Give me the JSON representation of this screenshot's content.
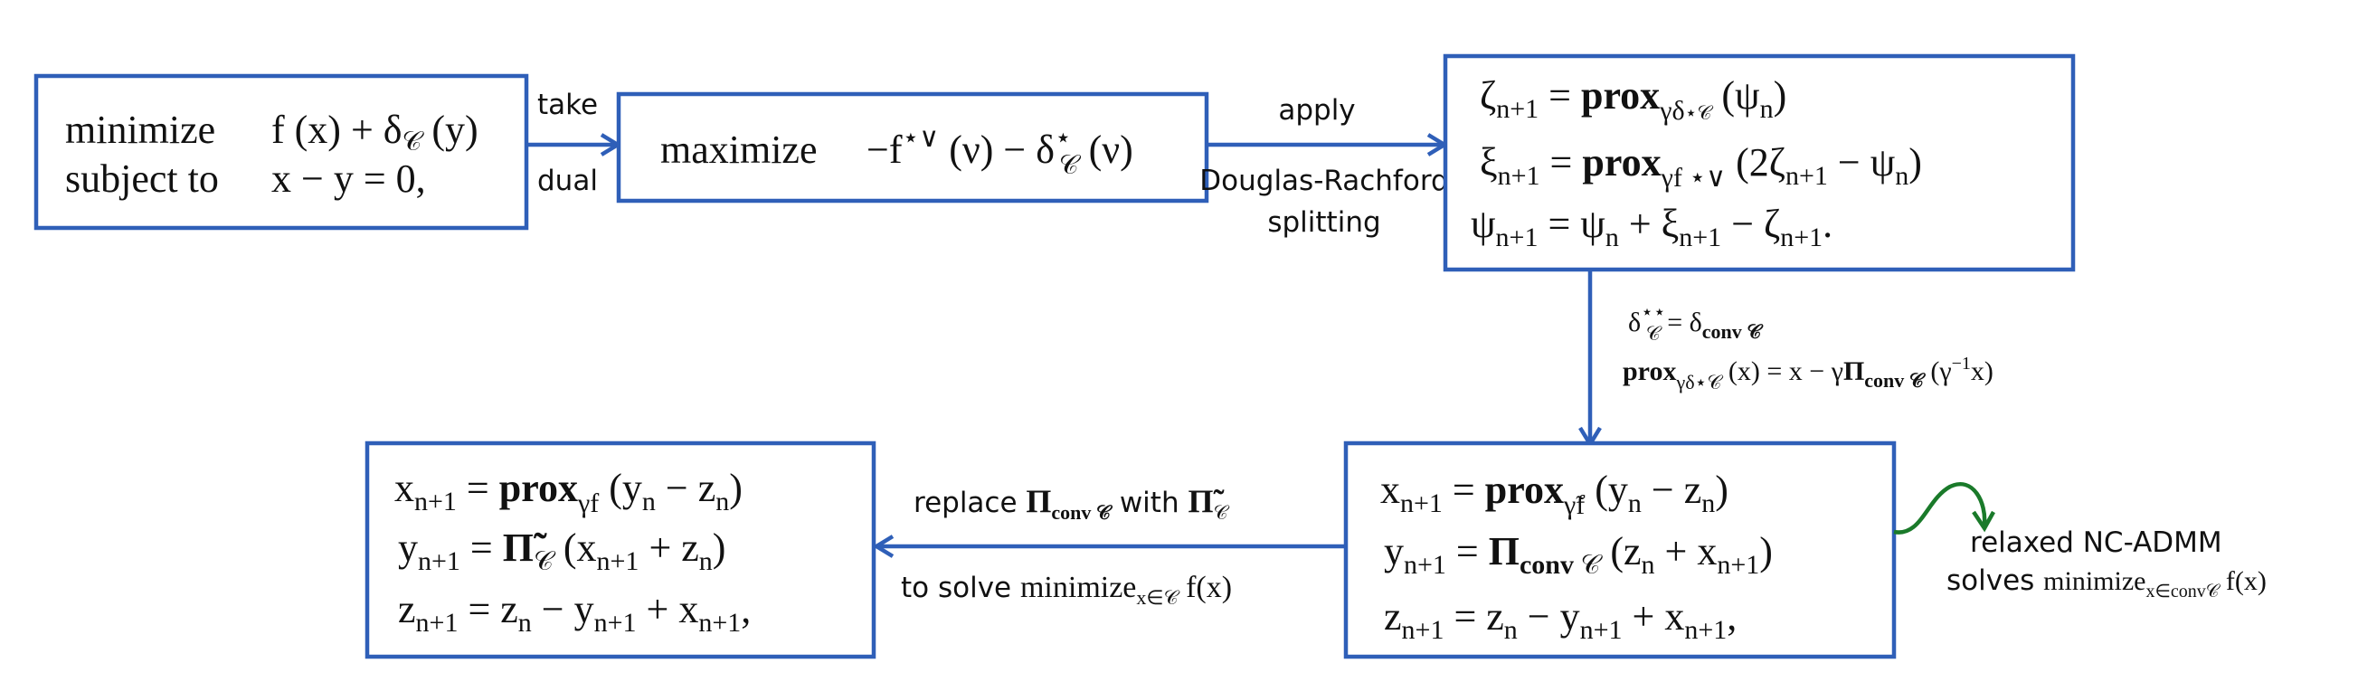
{
  "colors": {
    "box_border": "#2f5fb8",
    "arrow": "#2f5fb8",
    "curved_arrow": "#1a7a2a",
    "text": "#111111"
  },
  "box_primal": {
    "line1_keyword": "minimize",
    "line1_expr": "f (x) + δ",
    "line1_sub": "𝒞",
    "line1_tail": " (y)",
    "line2_keyword": "subject to",
    "line2_expr": "x − y = 0,"
  },
  "edge_dual": {
    "label_top": "take",
    "label_bottom": "dual"
  },
  "box_dual": {
    "keyword": "maximize",
    "expr_a": "−f",
    "expr_a_sup": "⋆∨",
    "expr_b": " (ν) − δ",
    "expr_b_sup": "⋆",
    "expr_b_sub": "𝒞",
    "expr_c": " (ν)"
  },
  "edge_dr": {
    "label_top": "apply",
    "label_middle": "Douglas-Rachford",
    "label_bottom": "splitting"
  },
  "box_dr": {
    "line1_lhs": "ζ",
    "line1_lhs_sub": "n+1",
    "line1_eq": " = ",
    "line1_op": "prox",
    "line1_op_sub": "γδ",
    "line1_op_sub2": "⋆𝒞",
    "line1_rhs": " (ψ",
    "line1_rhs_sub": "n",
    "line1_tail": ")",
    "line2_lhs": "ξ",
    "line2_lhs_sub": "n+1",
    "line2_eq": " = ",
    "line2_op": "prox",
    "line2_op_sub": "γf ⋆∨",
    "line2_rhs": " (2ζ",
    "line2_rhs_sub": "n+1",
    "line2_rhs2": " − ψ",
    "line2_rhs2_sub": "n",
    "line2_tail": ")",
    "line3_lhs": "ψ",
    "line3_lhs_sub": "n+1",
    "line3_rhs": " = ψ",
    "line3_rhs_sub": "n",
    "line3_rhs2": " + ξ",
    "line3_rhs2_sub": "n+1",
    "line3_rhs3": " − ζ",
    "line3_rhs3_sub": "n+1",
    "line3_tail": "."
  },
  "edge_conj": {
    "line1_a": "δ",
    "line1_a_sup": "⋆⋆",
    "line1_a_sub": "𝒞",
    "line1_b": " = δ",
    "line1_b_sub": "conv 𝒞",
    "line2_op": "prox",
    "line2_op_sub": "γδ⋆𝒞",
    "line2_rhs": " (x) = x − γ",
    "line2_pi": "Π",
    "line2_pi_sub": "conv 𝒞",
    "line2_tail": " (γ",
    "line2_tail_sup": "−1",
    "line2_tail2": "x)"
  },
  "box_ncadmm": {
    "line1_lhs": "x",
    "line1_lhs_sub": "n+1",
    "line1_eq": " = ",
    "line1_op": "prox",
    "line1_op_sub": "γ̃f",
    "line1_rhs": " (y",
    "line1_rhs_sub": "n",
    "line1_rhs2": " − z",
    "line1_rhs2_sub": "n",
    "line1_tail": ")",
    "line2_lhs": "y",
    "line2_lhs_sub": "n+1",
    "line2_eq": " = ",
    "line2_op": "Π",
    "line2_op_sub": "conv",
    "line2_op_tail": " 𝒞",
    "line2_rhs": " (z",
    "line2_rhs_sub": "n",
    "line2_rhs2": " + x",
    "line2_rhs2_sub": "n+1",
    "line2_tail": ")",
    "line3_lhs": "z",
    "line3_lhs_sub": "n+1",
    "line3_rhs": " = z",
    "line3_rhs_sub": "n",
    "line3_rhs2": " − y",
    "line3_rhs2_sub": "n+1",
    "line3_rhs3": " + x",
    "line3_rhs3_sub": "n+1",
    "line3_tail": ","
  },
  "note_relaxed": {
    "line1": "relaxed NC-ADMM",
    "line2_text": "solves ",
    "line2_math": "minimize",
    "line2_math_sub": "x∈conv𝒞",
    "line2_tail": " f(x)"
  },
  "edge_replace": {
    "top_text": "replace ",
    "top_pi": "Π",
    "top_pi_sub": "conv 𝒞",
    "top_mid": " with ",
    "top_pi2": "Π̃",
    "top_pi2_sub": "𝒞",
    "bottom_text": "to solve ",
    "bottom_math": "minimize",
    "bottom_math_sub": "x∈𝒞",
    "bottom_tail": " f(x)"
  },
  "box_final": {
    "line1_lhs": "x",
    "line1_lhs_sub": "n+1",
    "line1_eq": " = ",
    "line1_op": "prox",
    "line1_op_sub": "γf",
    "line1_rhs": " (y",
    "line1_rhs_sub": "n",
    "line1_rhs2": " − z",
    "line1_rhs2_sub": "n",
    "line1_tail": ")",
    "line2_lhs": "y",
    "line2_lhs_sub": "n+1",
    "line2_eq": " = ",
    "line2_op": "Π̃",
    "line2_op_sub": "𝒞",
    "line2_rhs": " (x",
    "line2_rhs_sub": "n+1",
    "line2_rhs2": " + z",
    "line2_rhs2_sub": "n",
    "line2_tail": ")",
    "line3_lhs": "z",
    "line3_lhs_sub": "n+1",
    "line3_rhs": " = z",
    "line3_rhs_sub": "n",
    "line3_rhs2": " − y",
    "line3_rhs2_sub": "n+1",
    "line3_rhs3": " + x",
    "line3_rhs3_sub": "n+1",
    "line3_tail": ","
  }
}
